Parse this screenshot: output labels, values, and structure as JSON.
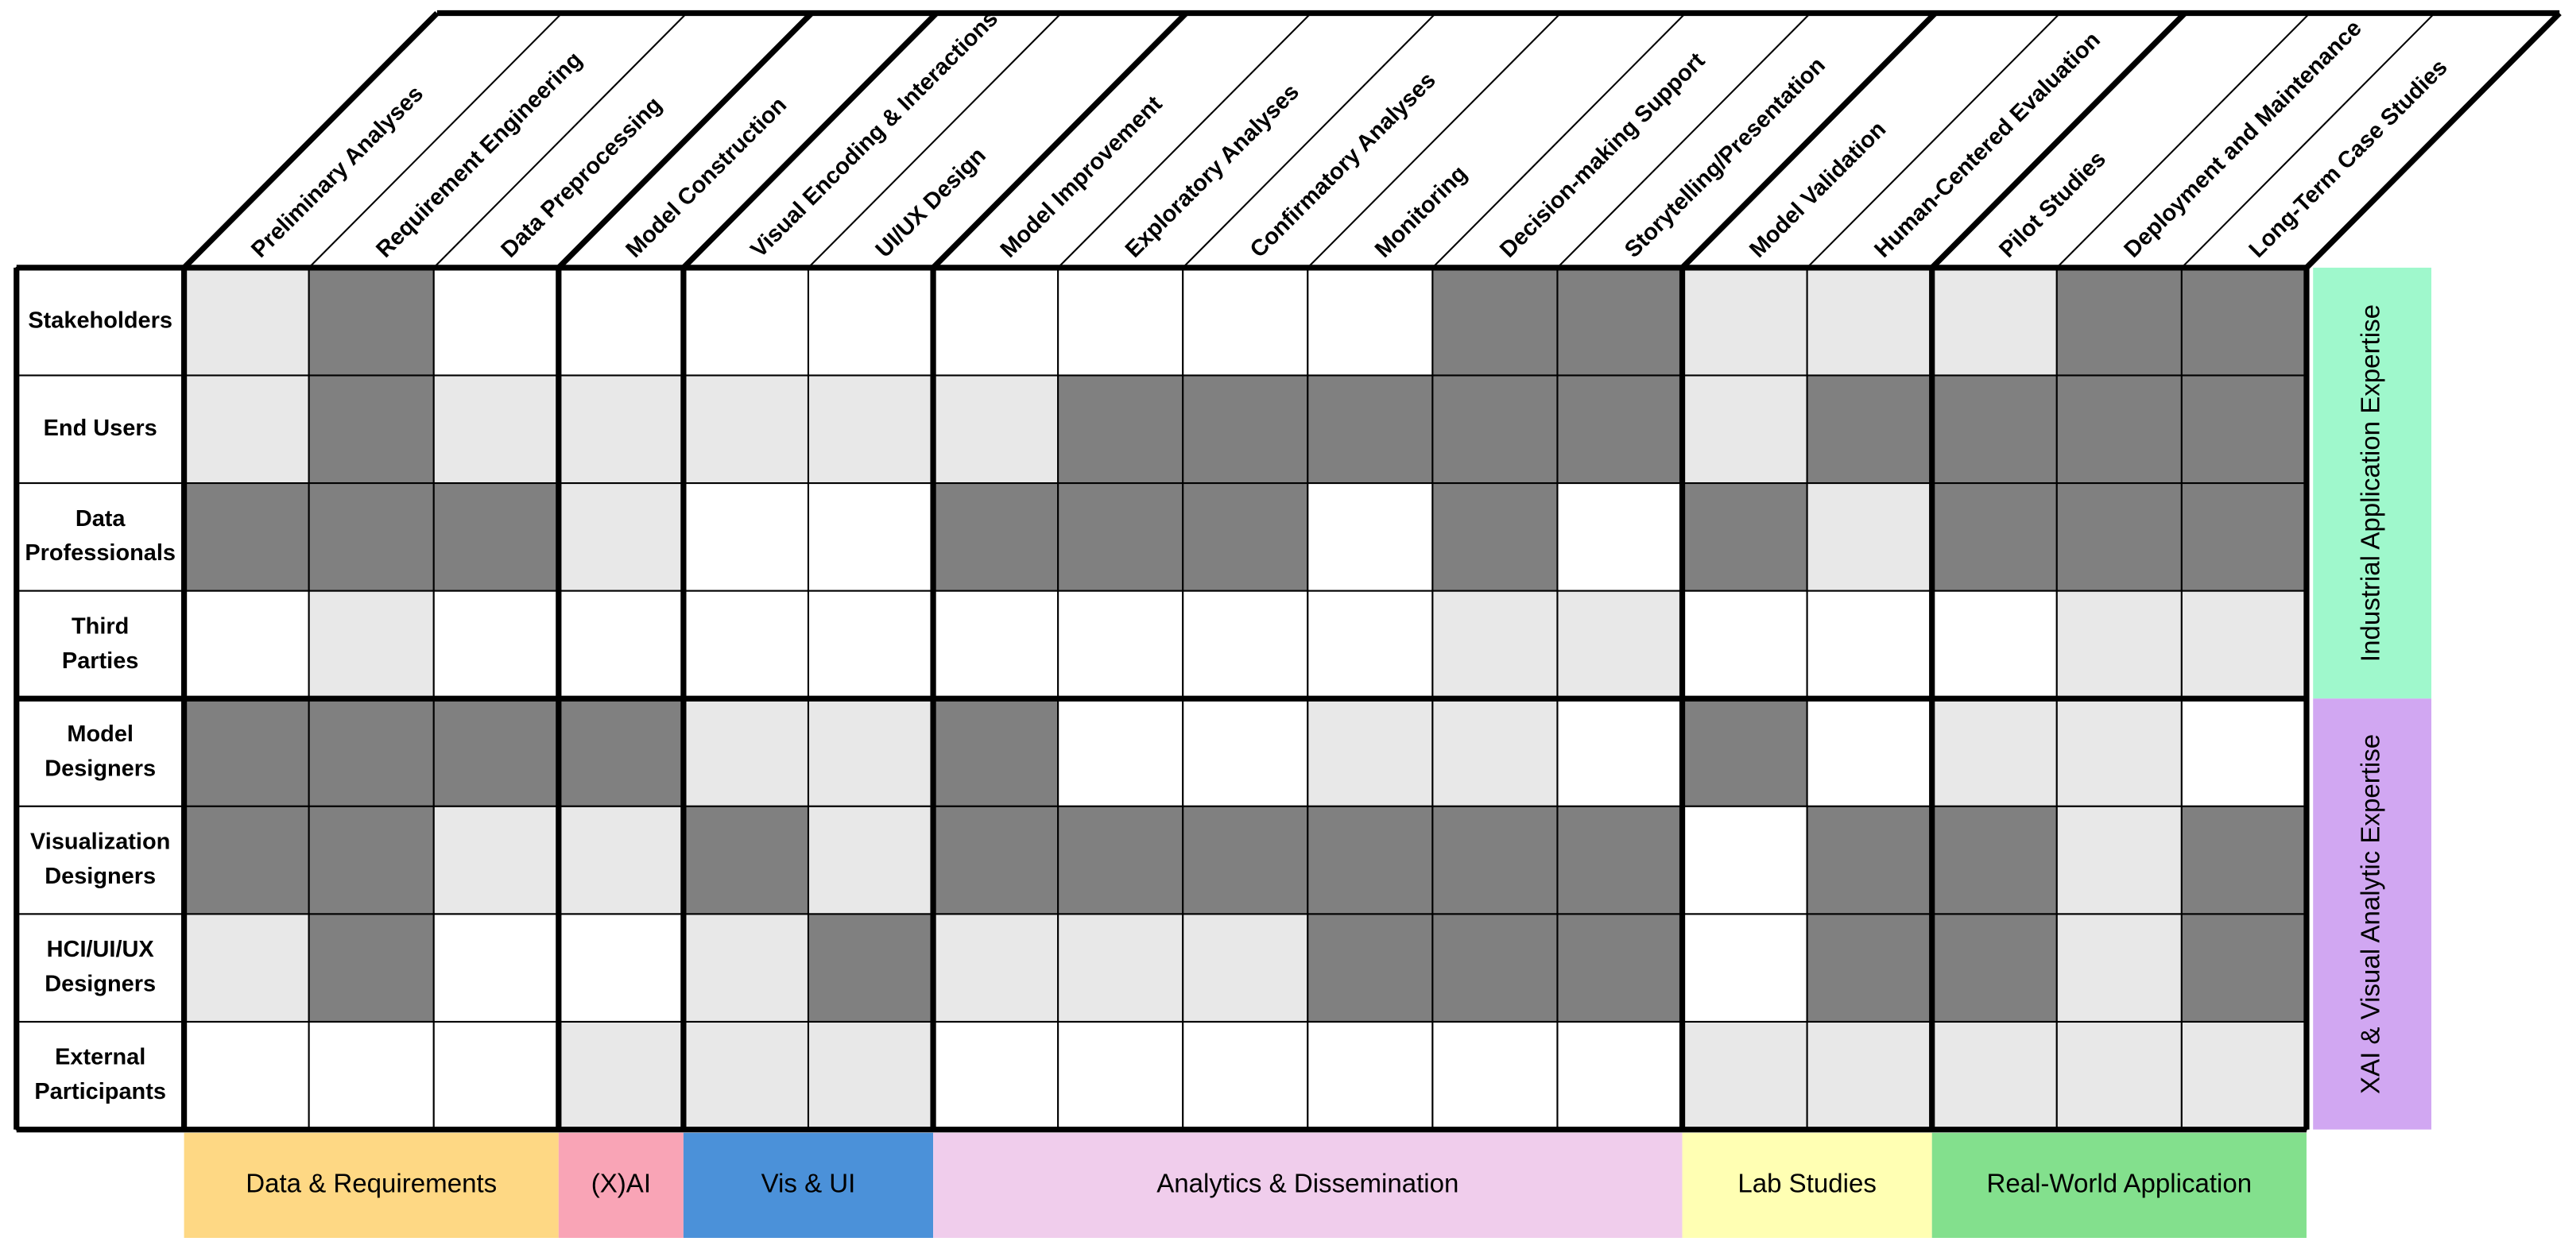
{
  "columns": [
    "Preliminary Analyses",
    "Requirement Engineering",
    "Data Preprocessing",
    "Model Construction",
    "Visual Encoding & Interactions",
    "UI/UX Design",
    "Model Improvement",
    "Exploratory Analyses",
    "Confirmatory Analyses",
    "Monitoring",
    "Decision-making Support",
    "Storytelling/Presentation",
    "Model Validation",
    "Human-Centered Evaluation",
    "Pilot Studies",
    "Deployment and Maintenance",
    "Long-Term Case Studies"
  ],
  "rows": [
    [
      "Stakeholders"
    ],
    [
      "End Users"
    ],
    [
      "Data",
      "Professionals"
    ],
    [
      "Third",
      "Parties"
    ],
    [
      "Model",
      "Designers"
    ],
    [
      "Visualization",
      "Designers"
    ],
    [
      "HCI/UI/UX",
      "Designers"
    ],
    [
      "External",
      "Participants"
    ]
  ],
  "matrix": [
    [
      1,
      2,
      0,
      0,
      0,
      0,
      0,
      0,
      0,
      0,
      2,
      2,
      1,
      1,
      1,
      2,
      2
    ],
    [
      1,
      2,
      1,
      1,
      1,
      1,
      1,
      2,
      2,
      2,
      2,
      2,
      1,
      2,
      2,
      2,
      2
    ],
    [
      2,
      2,
      2,
      1,
      0,
      0,
      2,
      2,
      2,
      0,
      2,
      0,
      2,
      1,
      2,
      2,
      2
    ],
    [
      0,
      1,
      0,
      0,
      0,
      0,
      0,
      0,
      0,
      0,
      1,
      1,
      0,
      0,
      0,
      1,
      1
    ],
    [
      2,
      2,
      2,
      2,
      1,
      1,
      2,
      0,
      0,
      1,
      1,
      0,
      2,
      0,
      1,
      1,
      0
    ],
    [
      2,
      2,
      1,
      1,
      2,
      1,
      2,
      2,
      2,
      2,
      2,
      2,
      0,
      2,
      2,
      1,
      2
    ],
    [
      1,
      2,
      0,
      0,
      1,
      2,
      1,
      1,
      1,
      2,
      2,
      2,
      0,
      2,
      2,
      1,
      2
    ],
    [
      0,
      0,
      0,
      1,
      1,
      1,
      0,
      0,
      0,
      0,
      0,
      0,
      1,
      1,
      1,
      1,
      1
    ]
  ],
  "level_colors": [
    "#ffffff",
    "#e8e8e8",
    "#808080"
  ],
  "column_groups": [
    {
      "label": "Data & Requirements",
      "span": 3,
      "color": "#fed884"
    },
    {
      "label": "(X)AI",
      "span": 1,
      "color": "#f9a4b6"
    },
    {
      "label": "Vis & UI",
      "span": 2,
      "color": "#4b91d9"
    },
    {
      "label": "Analytics & Dissemination",
      "span": 6,
      "color": "#f0cdec"
    },
    {
      "label": "Lab Studies",
      "span": 2,
      "color": "#ffffb3"
    },
    {
      "label": "Real-World Application",
      "span": 3,
      "color": "#83e08d"
    }
  ],
  "row_groups": [
    {
      "label": "Industrial Application Expertise",
      "span": 4,
      "color": "#9ff8cc"
    },
    {
      "label": "XAI & Visual Analytic Expertise",
      "span": 4,
      "color": "#d1a7f2"
    }
  ]
}
